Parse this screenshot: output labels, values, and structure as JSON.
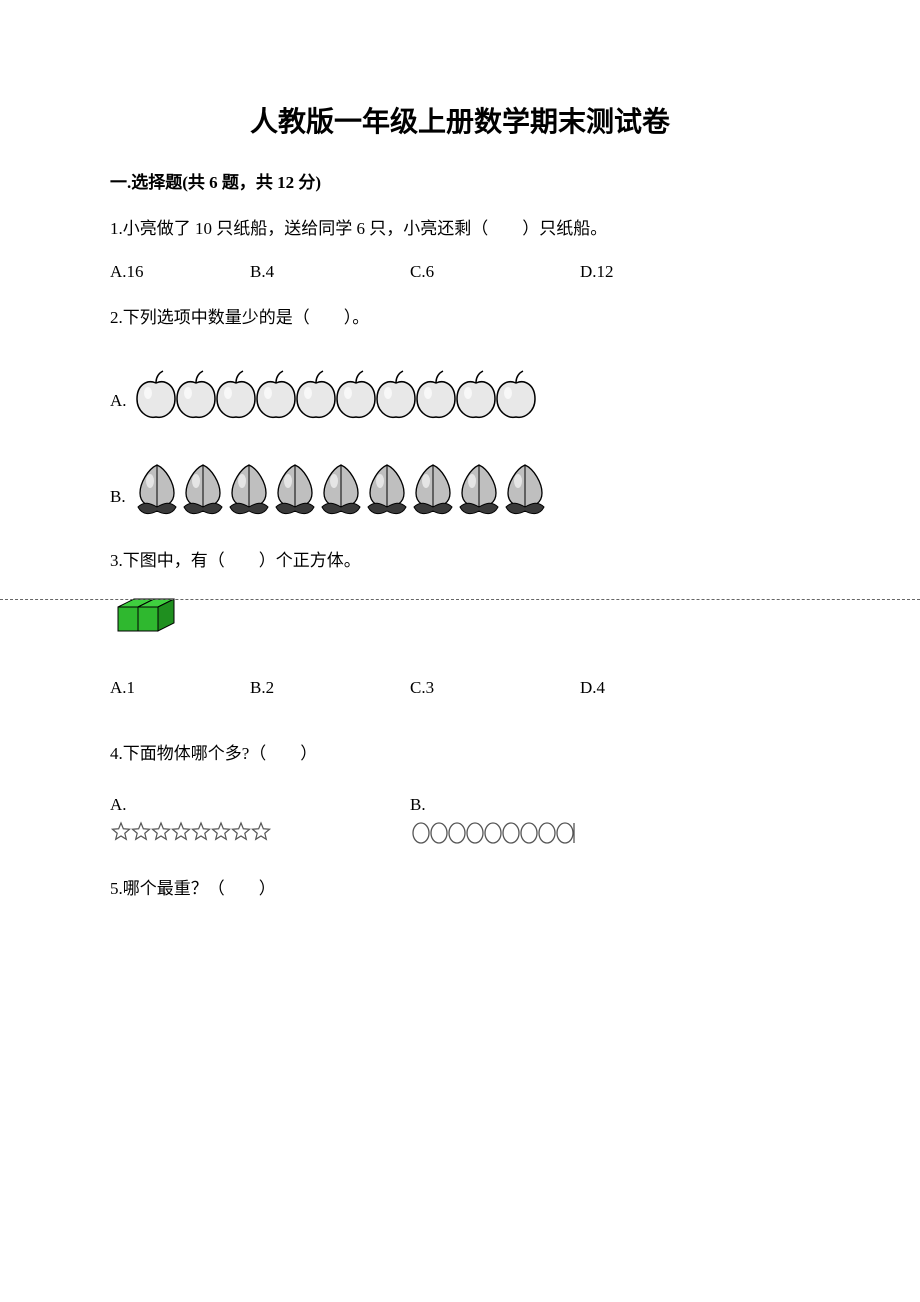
{
  "title": "人教版一年级上册数学期末测试卷",
  "section1": {
    "header": "一.选择题(共 6 题，共 12 分)"
  },
  "q1": {
    "text": "1.小亮做了 10 只纸船，送给同学 6 只，小亮还剩（　　）只纸船。",
    "a": "A.16",
    "b": "B.4",
    "c": "C.6",
    "d": "D.12"
  },
  "q2": {
    "text": "2.下列选项中数量少的是（　　）。",
    "a_label": "A.",
    "b_label": "B.",
    "apple_count": 10,
    "peach_count": 9,
    "apple_fill": "#e8e8e8",
    "apple_stroke": "#000000",
    "peach_fill": "#bfbfbf",
    "peach_stroke": "#000000",
    "leaf_fill": "#3a3a3a"
  },
  "q3": {
    "text": "3.下图中，有（　　）个正方体。",
    "a": "A.1",
    "b": "B.2",
    "c": "C.3",
    "d": "D.4",
    "cube": {
      "face_top": "#3fcf3f",
      "face_front": "#2fb82f",
      "face_side": "#1f8f1f",
      "stroke": "#000000"
    }
  },
  "q4": {
    "text": "4.下面物体哪个多?（　　）",
    "a_label": "A.",
    "b_label": "B.",
    "star_count": 8,
    "oval_count": 9,
    "star_stroke": "#555555",
    "star_fill": "#ffffff",
    "oval_stroke": "#555555",
    "oval_fill": "#ffffff"
  },
  "q5": {
    "text": "5.哪个最重？（　　）"
  },
  "style": {
    "dashed_line_color": "#666666"
  }
}
